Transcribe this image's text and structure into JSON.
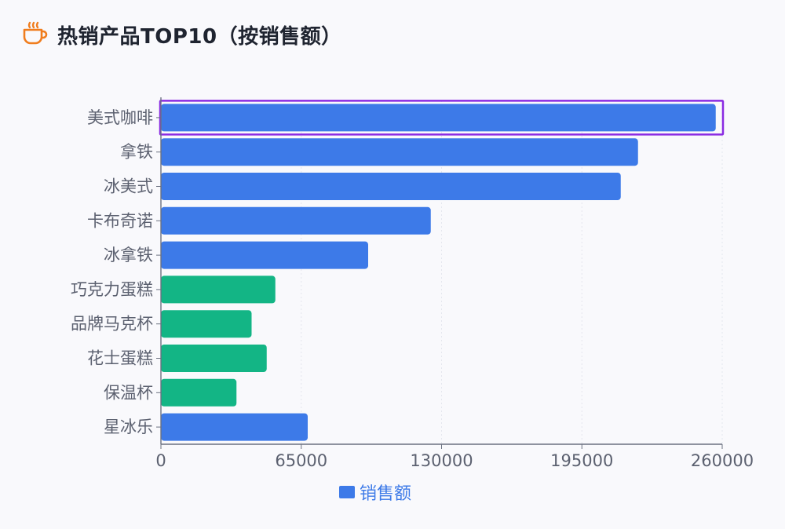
{
  "header": {
    "icon": "coffee-cup-icon",
    "title": "热销产品TOP10（按销售额）"
  },
  "colors": {
    "coffee": "#3d7ae8",
    "merch": "#13b585",
    "highlight": "#8a2be2",
    "title": "#1f2430",
    "axis": "#6b7180",
    "icon": "#f07d1e"
  },
  "chart_data": {
    "type": "bar",
    "orientation": "horizontal",
    "categories": [
      "美式咖啡",
      "拿铁",
      "冰美式",
      "卡布奇诺",
      "冰拿铁",
      "巧克力蛋糕",
      "品牌马克杯",
      "花士蛋糕",
      "保温杯",
      "星冰乐"
    ],
    "values": [
      257000,
      221000,
      213000,
      125000,
      96000,
      53000,
      42000,
      49000,
      35000,
      68000
    ],
    "bar_groups": [
      "coffee",
      "coffee",
      "coffee",
      "coffee",
      "coffee",
      "merch",
      "merch",
      "merch",
      "merch",
      "coffee"
    ],
    "xlim": [
      0,
      260000
    ],
    "xticks": [
      "0",
      "65000",
      "130000",
      "195000",
      "260000"
    ],
    "highlighted_category": "美式咖啡",
    "legend": {
      "label": "销售额",
      "position": "bottom-center"
    },
    "grid": true
  }
}
